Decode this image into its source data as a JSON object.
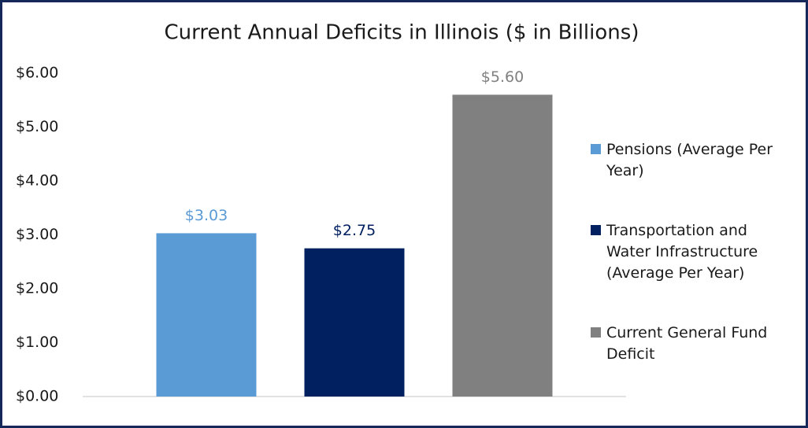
{
  "chart_data": {
    "type": "bar",
    "title": "Current Annual Deficits in Illinois ($ in Billions)",
    "categories": [
      null
    ],
    "series": [
      {
        "name": "Pensions (Average Per Year)",
        "color": "#5b9bd5",
        "values": [
          3.03
        ],
        "value_labels": [
          "$3.03"
        ]
      },
      {
        "name": "Transportation and Water Infrastructure (Average Per Year)",
        "color": "#002060",
        "values": [
          2.75
        ],
        "value_labels": [
          "$2.75"
        ]
      },
      {
        "name": "Current General Fund Deficit",
        "color": "#808080",
        "values": [
          5.6
        ],
        "value_labels": [
          "$5.60"
        ]
      }
    ],
    "ylim": [
      0,
      6
    ],
    "yticks": [
      {
        "value": 0,
        "label": "$0.00"
      },
      {
        "value": 1,
        "label": "$1.00"
      },
      {
        "value": 2,
        "label": "$2.00"
      },
      {
        "value": 3,
        "label": "$3.00"
      },
      {
        "value": 4,
        "label": "$4.00"
      },
      {
        "value": 5,
        "label": "$5.00"
      },
      {
        "value": 6,
        "label": "$6.00"
      }
    ],
    "grid": false,
    "legend": "right"
  }
}
